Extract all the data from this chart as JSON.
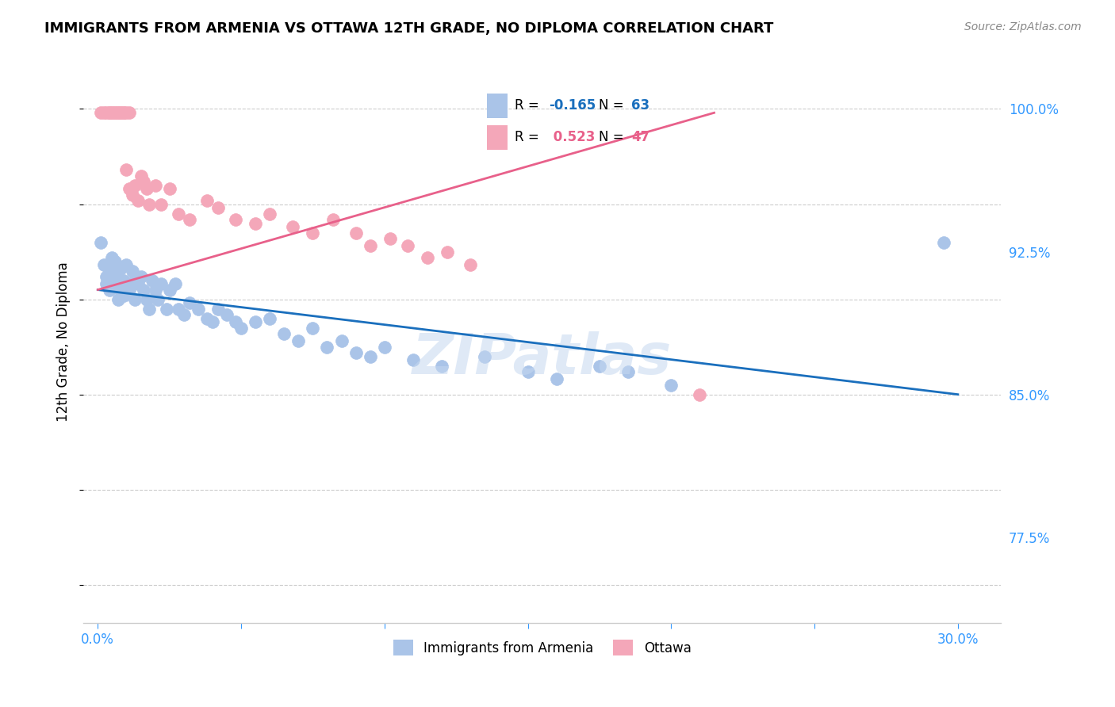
{
  "title": "IMMIGRANTS FROM ARMENIA VS OTTAWA 12TH GRADE, NO DIPLOMA CORRELATION CHART",
  "source": "Source: ZipAtlas.com",
  "ylabel": "12th Grade, No Diploma",
  "blue_color": "#aac4e8",
  "pink_color": "#f4a7b9",
  "blue_line_color": "#1a6fbd",
  "pink_line_color": "#e8608a",
  "blue_r": "-0.165",
  "blue_n": "63",
  "pink_r": "0.523",
  "pink_n": "47",
  "blue_scatter_x": [
    0.001,
    0.002,
    0.003,
    0.003,
    0.004,
    0.004,
    0.005,
    0.005,
    0.006,
    0.006,
    0.007,
    0.007,
    0.008,
    0.008,
    0.009,
    0.009,
    0.01,
    0.01,
    0.011,
    0.012,
    0.013,
    0.013,
    0.014,
    0.015,
    0.016,
    0.017,
    0.018,
    0.019,
    0.02,
    0.021,
    0.022,
    0.024,
    0.025,
    0.027,
    0.028,
    0.03,
    0.032,
    0.035,
    0.038,
    0.04,
    0.042,
    0.045,
    0.048,
    0.05,
    0.055,
    0.06,
    0.065,
    0.07,
    0.075,
    0.08,
    0.085,
    0.09,
    0.095,
    0.1,
    0.11,
    0.12,
    0.135,
    0.15,
    0.16,
    0.175,
    0.185,
    0.2,
    0.295
  ],
  "blue_scatter_y": [
    0.93,
    0.918,
    0.912,
    0.908,
    0.915,
    0.905,
    0.922,
    0.91,
    0.92,
    0.912,
    0.908,
    0.9,
    0.916,
    0.905,
    0.91,
    0.902,
    0.918,
    0.908,
    0.905,
    0.915,
    0.91,
    0.9,
    0.908,
    0.912,
    0.905,
    0.9,
    0.895,
    0.91,
    0.905,
    0.9,
    0.908,
    0.895,
    0.905,
    0.908,
    0.895,
    0.892,
    0.898,
    0.895,
    0.89,
    0.888,
    0.895,
    0.892,
    0.888,
    0.885,
    0.888,
    0.89,
    0.882,
    0.878,
    0.885,
    0.875,
    0.878,
    0.872,
    0.87,
    0.875,
    0.868,
    0.865,
    0.87,
    0.862,
    0.858,
    0.865,
    0.862,
    0.855,
    0.93
  ],
  "pink_scatter_x": [
    0.001,
    0.002,
    0.003,
    0.004,
    0.004,
    0.005,
    0.005,
    0.006,
    0.006,
    0.007,
    0.007,
    0.008,
    0.008,
    0.009,
    0.009,
    0.01,
    0.01,
    0.011,
    0.011,
    0.012,
    0.013,
    0.014,
    0.015,
    0.016,
    0.017,
    0.018,
    0.02,
    0.022,
    0.025,
    0.028,
    0.032,
    0.038,
    0.042,
    0.048,
    0.055,
    0.06,
    0.068,
    0.075,
    0.082,
    0.09,
    0.095,
    0.102,
    0.108,
    0.115,
    0.122,
    0.13,
    0.21
  ],
  "pink_scatter_y": [
    0.998,
    0.998,
    0.998,
    0.998,
    0.998,
    0.998,
    0.998,
    0.998,
    0.998,
    0.998,
    0.998,
    0.998,
    0.998,
    0.998,
    0.998,
    0.998,
    0.968,
    0.998,
    0.958,
    0.955,
    0.96,
    0.952,
    0.965,
    0.962,
    0.958,
    0.95,
    0.96,
    0.95,
    0.958,
    0.945,
    0.942,
    0.952,
    0.948,
    0.942,
    0.94,
    0.945,
    0.938,
    0.935,
    0.942,
    0.935,
    0.928,
    0.932,
    0.928,
    0.922,
    0.925,
    0.918,
    0.85
  ],
  "blue_trendline_x": [
    0.0,
    0.3
  ],
  "blue_trendline_y": [
    0.905,
    0.85
  ],
  "pink_trendline_x": [
    0.0,
    0.215
  ],
  "pink_trendline_y": [
    0.905,
    0.998
  ],
  "xmin": -0.005,
  "xmax": 0.315,
  "ymin": 0.73,
  "ymax": 1.025,
  "ytick_vals": [
    0.775,
    0.85,
    0.925,
    1.0
  ],
  "ytick_labels": [
    "77.5%",
    "85.0%",
    "92.5%",
    "100.0%"
  ],
  "xtick_vals": [
    0.0,
    0.05,
    0.1,
    0.15,
    0.2,
    0.25,
    0.3
  ],
  "xtick_labels": [
    "0.0%",
    "",
    "",
    "",
    "",
    "",
    "30.0%"
  ],
  "watermark": "ZIPatlas",
  "legend_items": [
    "Immigrants from Armenia",
    "Ottawa"
  ]
}
